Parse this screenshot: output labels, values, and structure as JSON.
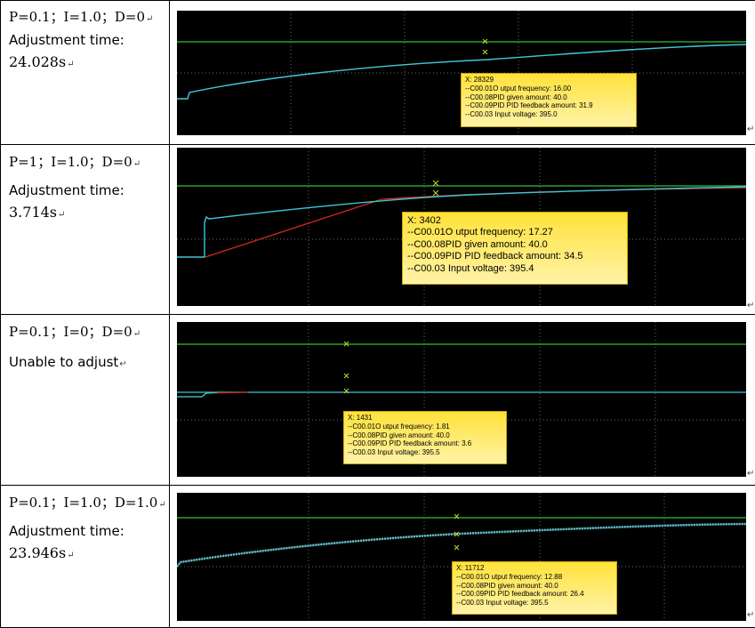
{
  "rows": [
    {
      "params": "P=0.1；I=1.0；D=0",
      "adj_label": "Adjustment time:",
      "adj_value": "24.028s",
      "tooltip": {
        "x": "X:  28329",
        "freq": "--C00.01O utput frequency:  16.00",
        "given": "--C00.08PID given amount:  40.0",
        "feedback": "--C00.09PID PID feedback amount:  31.9",
        "voltage": "--C00.03 Input voltage:  395.0"
      }
    },
    {
      "params": "P=1；I=1.0；D=0",
      "adj_label": "Adjustment time:",
      "adj_value": "3.714s",
      "tooltip": {
        "x": "X:  3402",
        "freq": "--C00.01O utput frequency:  17.27",
        "given": "--C00.08PID given amount:  40.0",
        "feedback": "--C00.09PID PID feedback amount:  34.5",
        "voltage": "--C00.03 Input voltage:  395.4"
      }
    },
    {
      "params": "P=0.1；I=0；D=0",
      "adj_label": "Unable to adjust",
      "adj_value": "",
      "tooltip": {
        "x": "X:  1431",
        "freq": "--C00.01O utput frequency:  1.81",
        "given": "--C00.08PID given amount:  40.0",
        "feedback": "--C00.09PID PID feedback amount:  3.6",
        "voltage": "--C00.03 Input voltage:  395.5"
      }
    },
    {
      "params": "P=0.1；I=1.0；D=1.0",
      "adj_label": "Adjustment time:",
      "adj_value": "23.946s",
      "tooltip": {
        "x": "X:  11712",
        "freq": "--C00.01O utput frequency:  12.88",
        "given": "--C00.08PID given amount:  40.0",
        "feedback": "--C00.09PID PID feedback amount:  26.4",
        "voltage": "--C00.03 Input voltage:  395.5"
      }
    }
  ],
  "paragraph_mark": "↵",
  "colors": {
    "scope_bg": "#000000",
    "grid": "#6a6a6a",
    "setpoint_line": "#2fbf3a",
    "feedback_line": "#39c8d8",
    "frequency_line": "#d22a1e",
    "cursor_mark": "#c8d82a",
    "tooltip_bg": "#ffe23a"
  }
}
